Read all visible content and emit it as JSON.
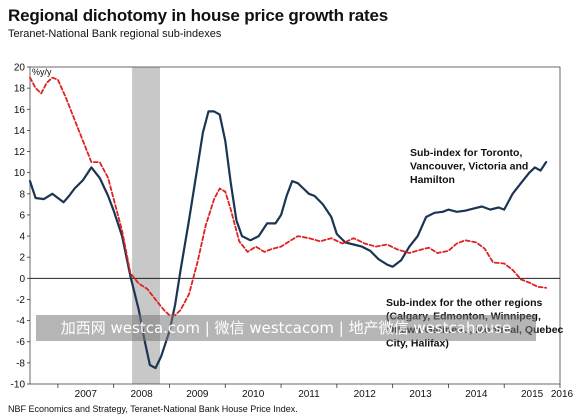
{
  "header": {
    "title": "Regional dichotomy in house price growth rates",
    "subtitle": "Teranet-National Bank regional sub-indexes"
  },
  "footer": {
    "source": "NBF Economics and Strategy, Teranet-National Bank House Price Index."
  },
  "watermark": {
    "text": "加西网 westca.com | 微信 westcacom | 地产微信 westcahouse"
  },
  "chart_data": {
    "type": "line",
    "title": "Regional dichotomy in house price growth rates",
    "subtitle": "Teranet-National Bank regional sub-indexes",
    "ylabel": "%y/y",
    "xlim": [
      2006.5,
      2016.0
    ],
    "ylim": [
      -10,
      20
    ],
    "yticks": [
      -10,
      -8,
      -6,
      -4,
      -2,
      0,
      2,
      4,
      6,
      8,
      10,
      12,
      14,
      16,
      18,
      20
    ],
    "xticks": [
      2007,
      2008,
      2009,
      2010,
      2011,
      2012,
      2013,
      2014,
      2015,
      2016
    ],
    "grid": false,
    "recession": [
      2008.33,
      2008.83
    ],
    "zero_line": true,
    "series": [
      {
        "name": "Sub-index for Toronto, Vancouver, Victoria and Hamilton",
        "color": "#1b3553",
        "style": "solid",
        "x": [
          2006.5,
          2006.6,
          2006.75,
          2006.9,
          2007.0,
          2007.1,
          2007.2,
          2007.3,
          2007.45,
          2007.6,
          2007.75,
          2007.9,
          2008.0,
          2008.15,
          2008.3,
          2008.45,
          2008.55,
          2008.65,
          2008.75,
          2008.85,
          2009.0,
          2009.1,
          2009.2,
          2009.35,
          2009.5,
          2009.6,
          2009.7,
          2009.8,
          2009.9,
          2010.0,
          2010.1,
          2010.2,
          2010.3,
          2010.45,
          2010.6,
          2010.75,
          2010.9,
          2011.0,
          2011.1,
          2011.2,
          2011.3,
          2011.4,
          2011.5,
          2011.6,
          2011.75,
          2011.9,
          2012.0,
          2012.15,
          2012.3,
          2012.45,
          2012.6,
          2012.75,
          2012.9,
          2013.0,
          2013.15,
          2013.3,
          2013.45,
          2013.6,
          2013.75,
          2013.9,
          2014.0,
          2014.15,
          2014.3,
          2014.45,
          2014.6,
          2014.75,
          2014.9,
          2015.0,
          2015.15,
          2015.3,
          2015.45,
          2015.55,
          2015.65,
          2015.75
        ],
        "values": [
          9.2,
          7.6,
          7.5,
          8.0,
          7.6,
          7.2,
          7.8,
          8.5,
          9.3,
          10.5,
          9.5,
          7.8,
          6.4,
          4.0,
          0.2,
          -3.0,
          -5.8,
          -8.2,
          -8.5,
          -7.4,
          -5.0,
          -2.5,
          0.8,
          5.5,
          10.5,
          13.8,
          15.8,
          15.8,
          15.5,
          13.0,
          9.0,
          5.5,
          4.0,
          3.6,
          4.0,
          5.2,
          5.2,
          6.0,
          7.8,
          9.2,
          9.0,
          8.5,
          8.0,
          7.8,
          7.0,
          5.8,
          4.2,
          3.4,
          3.2,
          3.0,
          2.6,
          1.8,
          1.3,
          1.1,
          1.7,
          3.0,
          4.0,
          5.8,
          6.2,
          6.3,
          6.5,
          6.3,
          6.4,
          6.6,
          6.8,
          6.5,
          6.7,
          6.5,
          8.0,
          9.0,
          10.0,
          10.5,
          10.2,
          11.0
        ]
      },
      {
        "name": "Sub-index for the other regions (Calgary, Edmonton, Winnipeg, Ottawa-Gatineau, Montreal, Quebec City, Halifax)",
        "color": "#dd2222",
        "style": "dashed",
        "x": [
          2006.5,
          2006.6,
          2006.7,
          2006.8,
          2006.9,
          2007.0,
          2007.15,
          2007.3,
          2007.45,
          2007.6,
          2007.75,
          2007.9,
          2008.0,
          2008.15,
          2008.3,
          2008.45,
          2008.6,
          2008.75,
          2008.9,
          2009.0,
          2009.1,
          2009.2,
          2009.35,
          2009.5,
          2009.65,
          2009.8,
          2009.9,
          2010.0,
          2010.1,
          2010.25,
          2010.4,
          2010.55,
          2010.7,
          2010.85,
          2011.0,
          2011.15,
          2011.3,
          2011.5,
          2011.7,
          2011.9,
          2012.1,
          2012.3,
          2012.5,
          2012.7,
          2012.9,
          2013.1,
          2013.3,
          2013.5,
          2013.65,
          2013.8,
          2014.0,
          2014.15,
          2014.3,
          2014.5,
          2014.65,
          2014.8,
          2015.0,
          2015.15,
          2015.3,
          2015.45,
          2015.6,
          2015.75
        ],
        "values": [
          19.0,
          18.0,
          17.5,
          18.5,
          19.0,
          18.8,
          17.0,
          15.0,
          13.0,
          11.0,
          11.0,
          9.5,
          7.5,
          4.5,
          0.5,
          -0.5,
          -1.0,
          -2.0,
          -3.0,
          -3.5,
          -3.5,
          -3.0,
          -1.5,
          1.5,
          5.0,
          7.5,
          8.5,
          8.2,
          6.5,
          3.5,
          2.5,
          3.0,
          2.5,
          2.8,
          3.0,
          3.5,
          4.0,
          3.8,
          3.5,
          3.8,
          3.3,
          3.8,
          3.3,
          3.0,
          3.2,
          2.7,
          2.4,
          2.7,
          2.9,
          2.4,
          2.6,
          3.3,
          3.6,
          3.4,
          2.8,
          1.5,
          1.4,
          0.8,
          -0.1,
          -0.4,
          -0.8,
          -0.9
        ]
      }
    ],
    "annotations": [
      {
        "lines": [
          "Sub-index for Toronto,",
          "Vancouver, Victoria and",
          "Hamilton"
        ],
        "series": 0
      },
      {
        "lines": [
          "Sub-index for the other regions",
          "(Calgary, Edmonton, Winnipeg,",
          "Ottawa-Gatineau, Montreal, Quebec",
          "City, Halifax)"
        ],
        "series": 1
      }
    ]
  }
}
